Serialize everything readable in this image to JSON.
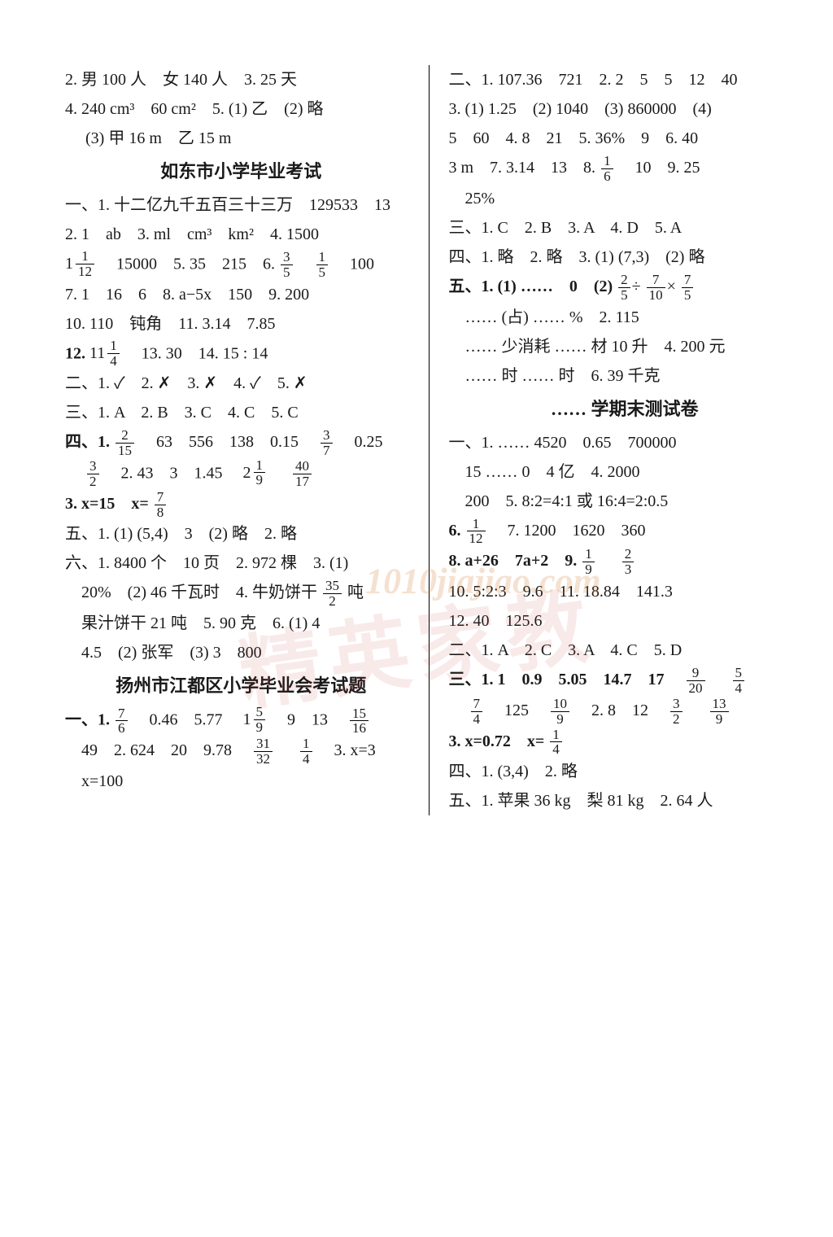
{
  "left": {
    "l1": "2. 男 100 人　女 140 人　3. 25 天",
    "l2": "4. 240 cm³　60 cm²　5. (1) 乙　(2) 略",
    "l3": "　 (3) 甲 16 m　乙 15 m",
    "h1": "如东市小学毕业考试",
    "l4a": "一、1. 十二亿九千五百三十三万　129533　13",
    "l5p": "2. 1　ab　3. ml　cm³　km²　4. 1500",
    "l6a": "　15000　5. 35　215　6.",
    "l6b": "　100",
    "l7": "7. 1　16　6　8. a−5x　150　9. 200",
    "l8": "10. 110　钝角　11. 3.14　7.85",
    "l9a": "12. ",
    "l9b": "　13. 30　14. 15 : 14",
    "l10": "二、1. ✓　2. ✗　3. ✗　4. ✓　5. ✗",
    "l11": "三、1. A　2. B　3. C　4. C　5. C",
    "l12a": "四、1.",
    "l12b": "　63　556　138　0.15　",
    "l12c": "　0.25",
    "l13a": "　",
    "l13b": "　2. 43　3　1.45　",
    "l13c": "　",
    "l14a": "3. x=15　x=",
    "l15": "五、1. (1) (5,4)　3　(2) 略　2. 略",
    "l16": "六、1. 8400 个　10 页　2. 972 棵　3. (1)",
    "l17a": "　20%　(2) 46 千瓦时　4. 牛奶饼干",
    "l17b": "吨",
    "l18": "　果汁饼干 21 吨　5. 90 克　6. (1) 4",
    "l19": "　4.5　(2) 张军　(3) 3　800",
    "h2": "扬州市江都区小学毕业会考试题",
    "l20a": "一、1.",
    "l20b": "　0.46　5.77　",
    "l20c": "　9　13　",
    "l21a": "　49　2. 624　20　9.78　",
    "l21b": "　",
    "l21c": "　3. x=3",
    "l22": "　x=100"
  },
  "right": {
    "l1": "二、1. 107.36　721　2. 2　5　5　12　40",
    "l2": "3. (1) 1.25　(2) 1040　(3) 860000　(4)",
    "l3": "5　60　4. 8　21　5. 36%　9　6. 40",
    "l4a": "3 m　7. 3.14　13　8.",
    "l4b": "　10　9. 25",
    "l5": "　25%",
    "l6": "三、1. C　2. B　3. A　4. D　5. A",
    "l7": "四、1. 略　2. 略　3. (1) (7,3)　(2) 略",
    "l8a": "五、1. (1) ……　0　(2) ",
    "l9": "　…… (占) …… %　2. 115",
    "l10": "　…… 少消耗 …… 材 10 升　4. 200 元",
    "l11": "　…… 时 …… 时　6. 39 千克",
    "h3": "…… 学期末测试卷",
    "l12": "一、1. …… 4520　0.65　700000",
    "l13": "　15 …… 0　4 亿　4. 2000",
    "l14": "　200　5. 8:2=4:1 或 16:4=2:0.5",
    "l15a": "6.",
    "l15b": "　7. 1200　1620　360",
    "l16a": "8. a+26　7a+2　9.",
    "l16b": "　",
    "l17": "10. 5:2:3　9.6　11. 18.84　141.3",
    "l18": "12. 40　125.6",
    "l19": "二、1. A　2. C　3. A　4. C　5. D",
    "l20a": "三、1. 1　0.9　5.05　14.7　17　",
    "l20b": "　",
    "l21a": "　",
    "l21b": "　125　",
    "l21c": "　2. 8　12　",
    "l21d": "　",
    "l22a": "3. x=0.72　x=",
    "l23": "四、1. (3,4)　2. 略",
    "l24": "五、1. 苹果 36 kg　梨 81 kg　2. 64 人"
  },
  "frac": {
    "one_twelve": {
      "whole": "1",
      "n": "1",
      "d": "12"
    },
    "three_five": {
      "n": "3",
      "d": "5"
    },
    "one_five": {
      "n": "1",
      "d": "5"
    },
    "eleven_one_four": {
      "whole": "11",
      "n": "1",
      "d": "4"
    },
    "two_fifteen": {
      "n": "2",
      "d": "15"
    },
    "three_seven": {
      "n": "3",
      "d": "7"
    },
    "three_two": {
      "n": "3",
      "d": "2"
    },
    "two_one_nine": {
      "whole": "2",
      "n": "1",
      "d": "9"
    },
    "forty_seventeen": {
      "n": "40",
      "d": "17"
    },
    "seven_eight": {
      "n": "7",
      "d": "8"
    },
    "thirtyfive_two": {
      "n": "35",
      "d": "2"
    },
    "seven_six": {
      "n": "7",
      "d": "6"
    },
    "one_five_nine": {
      "whole": "1",
      "n": "5",
      "d": "9"
    },
    "fifteen_sixteen": {
      "n": "15",
      "d": "16"
    },
    "thirtyone_thirtytwo": {
      "n": "31",
      "d": "32"
    },
    "one_four": {
      "n": "1",
      "d": "4"
    },
    "one_six": {
      "n": "1",
      "d": "6"
    },
    "two_five_b": {
      "n": "2",
      "d": "5"
    },
    "seven_ten": {
      "n": "7",
      "d": "10"
    },
    "seven_five": {
      "n": "7",
      "d": "5"
    },
    "one_twelve_b": {
      "n": "1",
      "d": "12"
    },
    "one_nine": {
      "n": "1",
      "d": "9"
    },
    "two_three": {
      "n": "2",
      "d": "3"
    },
    "nine_twenty": {
      "n": "9",
      "d": "20"
    },
    "five_four": {
      "n": "5",
      "d": "4"
    },
    "seven_four": {
      "n": "7",
      "d": "4"
    },
    "ten_nine": {
      "n": "10",
      "d": "9"
    },
    "three_two_b": {
      "n": "3",
      "d": "2"
    },
    "thirteen_nine": {
      "n": "13",
      "d": "9"
    },
    "one_four_b": {
      "n": "1",
      "d": "4"
    }
  },
  "wm1": "精英家教",
  "wm2": "1010jiajiao.com"
}
